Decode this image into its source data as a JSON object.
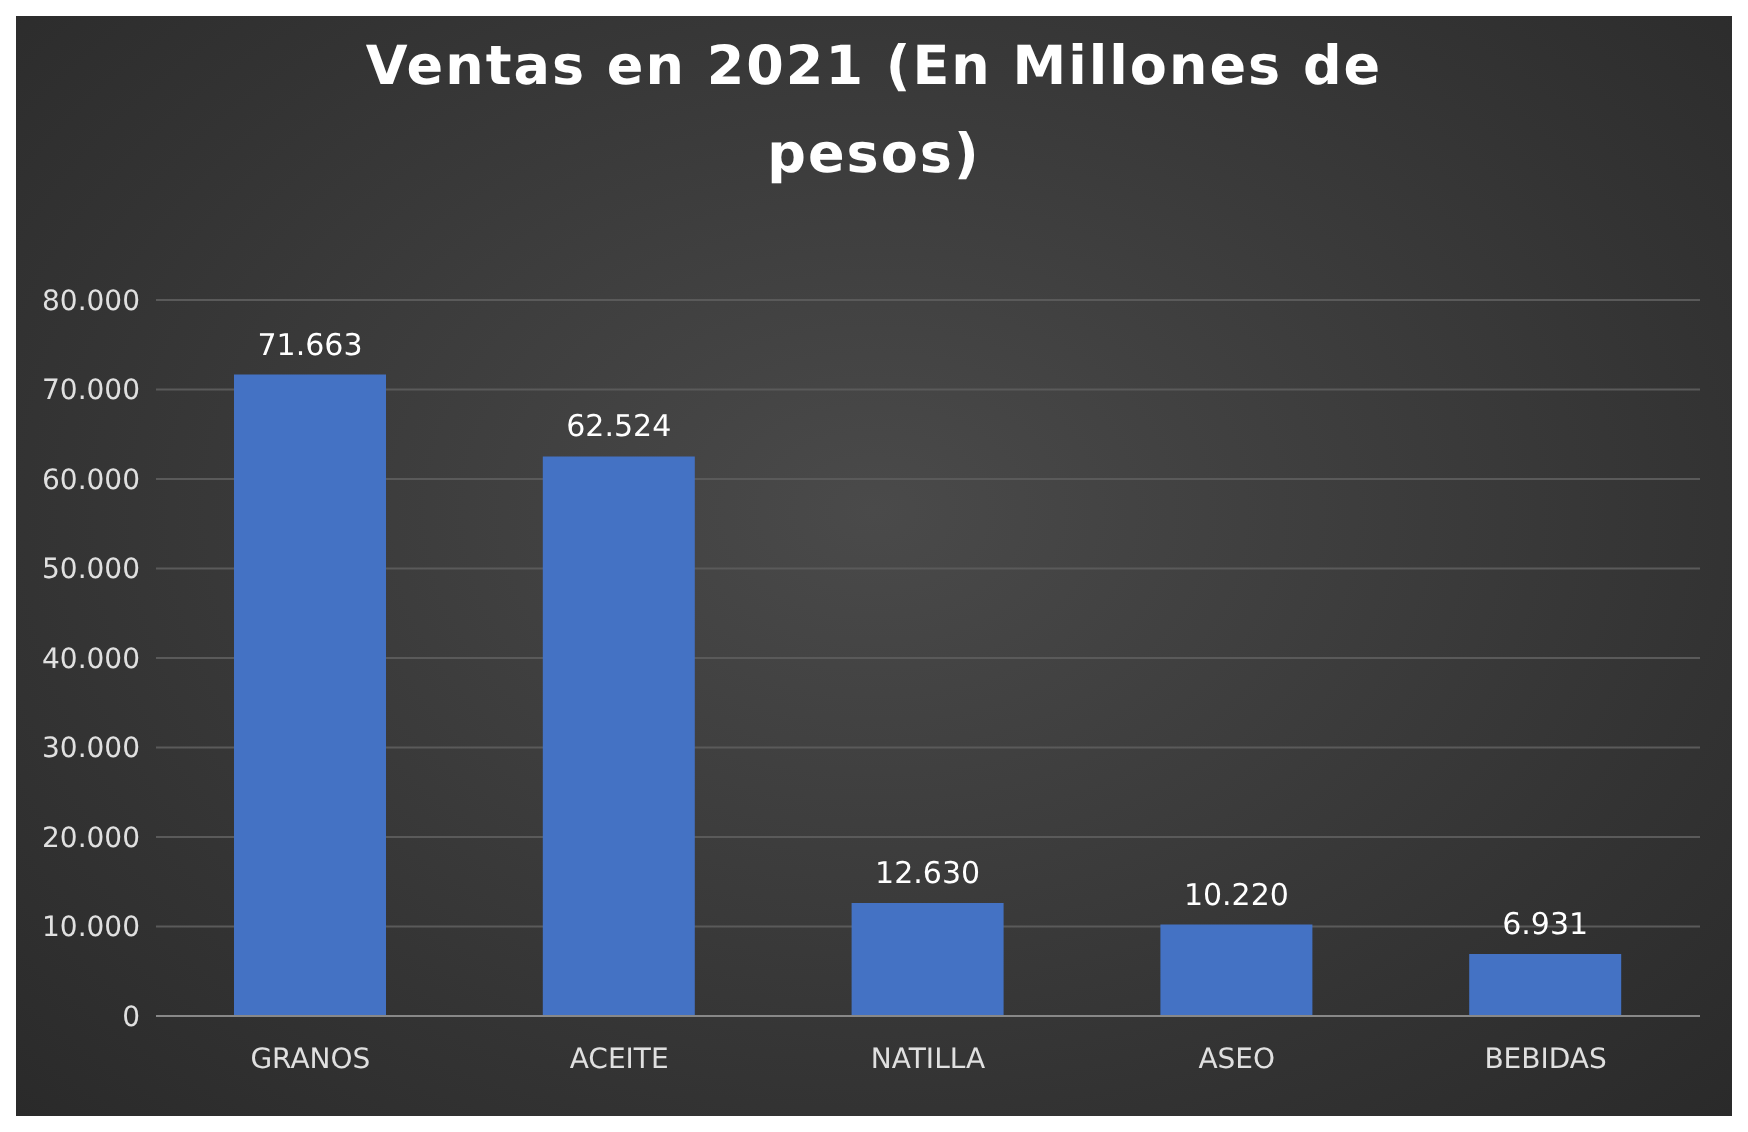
{
  "chart_data": {
    "type": "bar",
    "title": "Ventas en 2021 (En Millones de pesos)",
    "categories": [
      "GRANOS",
      "ACEITE",
      "NATILLA",
      "ASEO",
      "BEBIDAS"
    ],
    "values": [
      71663,
      62524,
      12630,
      10220,
      6931
    ],
    "value_labels": [
      "71.663",
      "62.524",
      "12.630",
      "10.220",
      "6.931"
    ],
    "color": "#4472c4",
    "ylim": [
      0,
      80000
    ],
    "yticks": [
      {
        "value": 0,
        "label": "0"
      },
      {
        "value": 10000,
        "label": "10.000"
      },
      {
        "value": 20000,
        "label": "20.000"
      },
      {
        "value": 30000,
        "label": "30.000"
      },
      {
        "value": 40000,
        "label": "40.000"
      },
      {
        "value": 50000,
        "label": "50.000"
      },
      {
        "value": 60000,
        "label": "60.000"
      },
      {
        "value": 70000,
        "label": "70.000"
      },
      {
        "value": 80000,
        "label": "80.000"
      }
    ],
    "grid": "y",
    "legend": false
  }
}
